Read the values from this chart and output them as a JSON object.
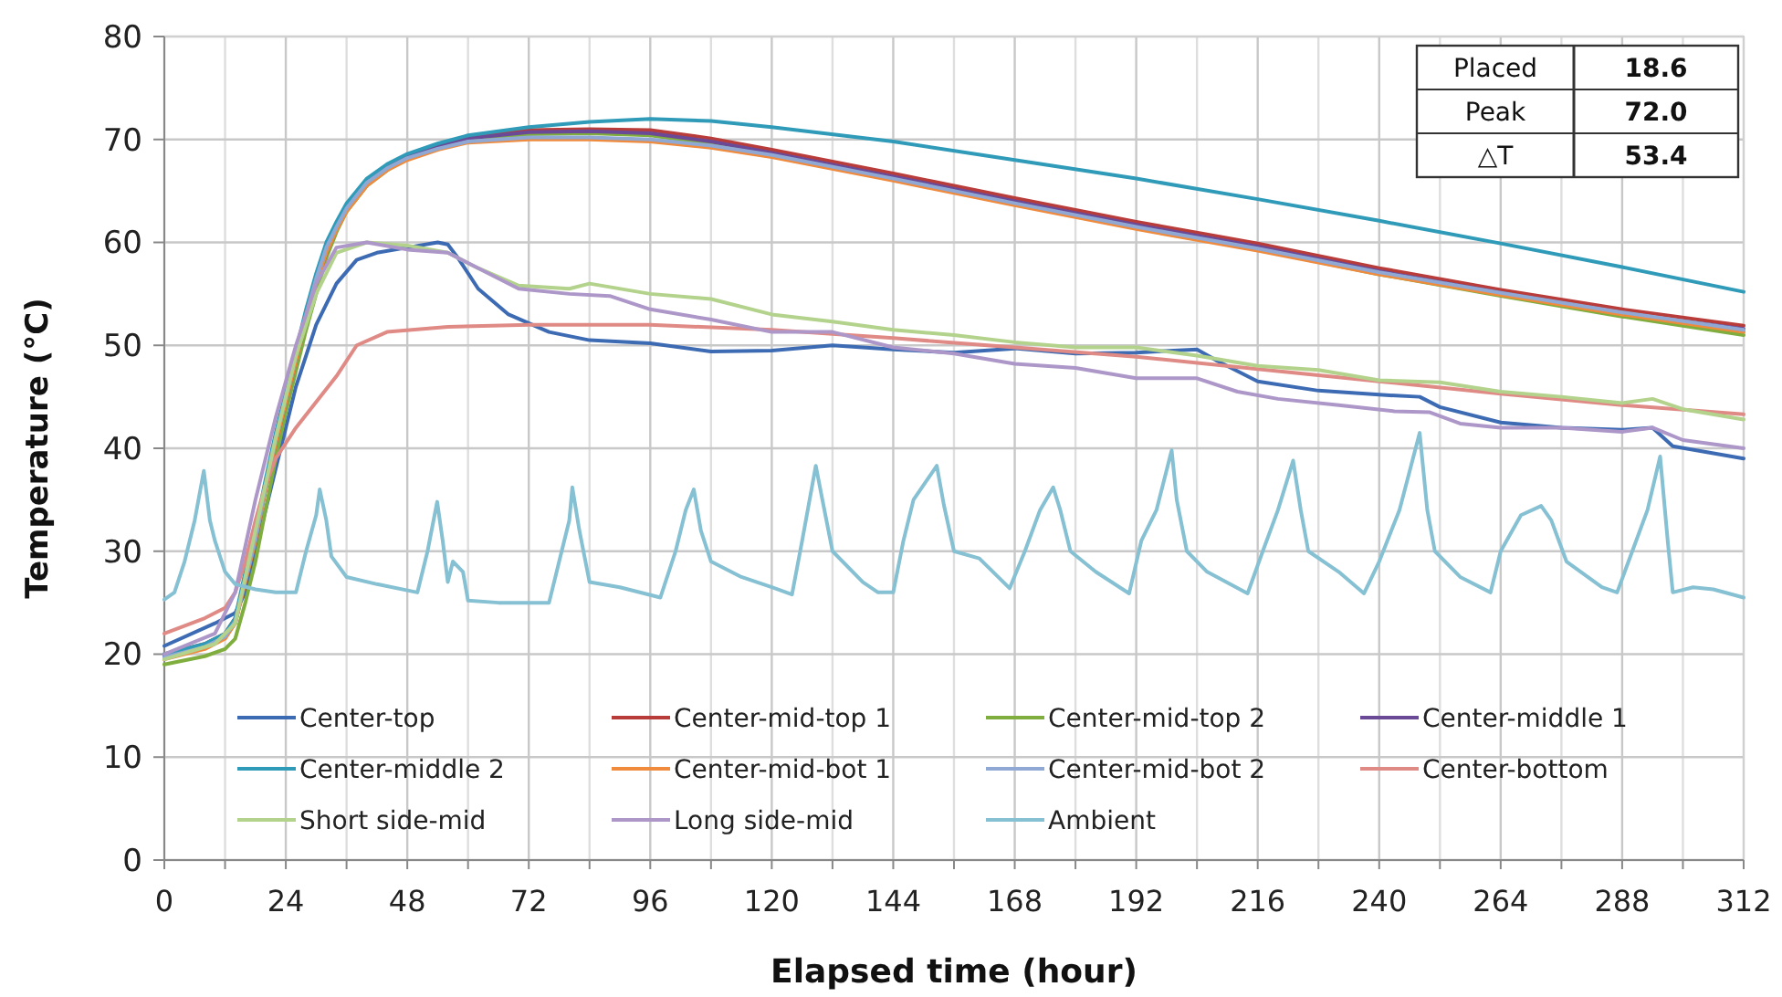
{
  "chart_data": {
    "type": "line",
    "xlabel": "Elapsed time (hour)",
    "ylabel": "Temperature (°C)",
    "xlim": [
      0,
      312
    ],
    "xticks": [
      0,
      {
        "value": 12,
        "label": null
      },
      24,
      {
        "value": 36,
        "label": null
      },
      48,
      {
        "value": 60,
        "label": null
      },
      72,
      {
        "value": 84,
        "label": null
      },
      96,
      {
        "value": 108,
        "label": null
      },
      120,
      {
        "value": 132,
        "label": null
      },
      144,
      {
        "value": 156,
        "label": null
      },
      168,
      {
        "value": 180,
        "label": null
      },
      192,
      {
        "value": 204,
        "label": null
      },
      216,
      {
        "value": 228,
        "label": null
      },
      240,
      {
        "value": 252,
        "label": null
      },
      264,
      {
        "value": 276,
        "label": null
      },
      288,
      {
        "value": 300,
        "label": null
      },
      312
    ],
    "ylim": [
      0,
      80
    ],
    "yticks": [
      0,
      10,
      20,
      30,
      40,
      50,
      60,
      70,
      80
    ],
    "grid": true,
    "legend": "bottom",
    "annotations": [
      "Placed",
      "18.6",
      "Peak",
      "72.0",
      "△T",
      "53.4"
    ],
    "x": [
      0,
      8,
      12,
      14,
      16,
      18,
      20,
      22,
      24,
      26,
      28,
      30,
      32,
      34,
      36,
      40,
      44,
      48,
      54,
      60,
      72,
      84,
      96,
      108,
      120,
      144,
      168,
      192,
      216,
      240,
      264,
      288,
      312
    ],
    "series": [
      {
        "name": "Center-top",
        "color": "#3d6bb3",
        "x": [
          0,
          10,
          14,
          16,
          18,
          20,
          22,
          24,
          26,
          28,
          30,
          34,
          38,
          42,
          48,
          54,
          56,
          58,
          62,
          68,
          76,
          84,
          96,
          108,
          120,
          132,
          144,
          156,
          168,
          180,
          192,
          204,
          208,
          216,
          228,
          240,
          248,
          252,
          264,
          276,
          288,
          294,
          298,
          312
        ],
        "values": [
          20.8,
          23,
          24,
          26,
          30,
          34,
          38,
          42,
          46,
          49,
          52,
          56,
          58.3,
          59,
          59.5,
          60,
          59.8,
          58.5,
          55.5,
          53,
          51.3,
          50.5,
          50.2,
          49.4,
          49.5,
          50,
          49.6,
          49.3,
          49.7,
          49.2,
          49.3,
          49.6,
          48.5,
          46.5,
          45.6,
          45.2,
          45.0,
          44.0,
          42.5,
          42.0,
          41.8,
          42.0,
          40.2,
          39.0
        ]
      },
      {
        "name": "Center-mid-top 1",
        "color": "#b83c3a",
        "values": [
          20,
          21,
          22,
          23.5,
          27.5,
          31.5,
          36.5,
          41,
          45,
          49,
          53,
          56.5,
          59.5,
          61.5,
          63.3,
          65.8,
          67.3,
          68.3,
          69.4,
          70.2,
          70.9,
          71.0,
          70.9,
          70.1,
          69.0,
          66.7,
          64.3,
          62.0,
          59.9,
          57.5,
          55.4,
          53.5,
          51.9
        ]
      },
      {
        "name": "Center-mid-top 2",
        "color": "#7fae3e",
        "values": [
          19,
          19.8,
          20.5,
          21.5,
          25,
          29,
          34,
          39,
          43.5,
          47.5,
          51.5,
          55,
          58.5,
          61,
          63,
          65.5,
          67,
          68.2,
          69.3,
          70,
          70.5,
          70.6,
          70.4,
          69.6,
          68.5,
          66.1,
          63.7,
          61.4,
          59.3,
          56.9,
          54.8,
          52.8,
          51.0
        ]
      },
      {
        "name": "Center-middle 1",
        "color": "#6a4a96",
        "values": [
          19.8,
          20.8,
          21.8,
          23,
          27,
          31,
          36,
          40.5,
          44.5,
          48.5,
          52.5,
          56,
          59,
          61.3,
          63.2,
          65.7,
          67.2,
          68.3,
          69.3,
          70.1,
          70.7,
          70.8,
          70.6,
          69.8,
          68.7,
          66.4,
          64.0,
          61.7,
          59.6,
          57.2,
          55.1,
          53.1,
          51.6
        ]
      },
      {
        "name": "Center-middle 2",
        "color": "#2f9bb8",
        "values": [
          20,
          21,
          22,
          23.5,
          28,
          32,
          37,
          41.5,
          45.5,
          49.5,
          53.5,
          57,
          60,
          62,
          63.8,
          66.2,
          67.6,
          68.6,
          69.6,
          70.4,
          71.2,
          71.7,
          72.0,
          71.8,
          71.2,
          69.8,
          68.0,
          66.2,
          64.2,
          62.1,
          59.9,
          57.6,
          55.2
        ]
      },
      {
        "name": "Center-mid-bot 1",
        "color": "#f08a3c",
        "values": [
          19.5,
          20.5,
          21.5,
          23,
          27,
          31,
          36,
          40.5,
          44.5,
          48.5,
          52.5,
          56,
          59,
          61.2,
          63,
          65.5,
          67,
          68,
          69,
          69.7,
          70.0,
          70.0,
          69.8,
          69.2,
          68.3,
          66.0,
          63.6,
          61.3,
          59.2,
          56.9,
          54.9,
          53.0,
          51.3
        ]
      },
      {
        "name": "Center-mid-bot 2",
        "color": "#8fa9d4",
        "values": [
          19.7,
          20.7,
          21.7,
          23.2,
          27.3,
          31.3,
          36.3,
          41,
          45,
          49,
          53,
          56.5,
          59.5,
          61.5,
          63.3,
          65.8,
          67.2,
          68.2,
          69.1,
          69.8,
          70.2,
          70.2,
          70.0,
          69.4,
          68.5,
          66.2,
          63.8,
          61.5,
          59.4,
          57.1,
          55.1,
          53.2,
          51.5
        ]
      },
      {
        "name": "Center-bottom",
        "color": "#e08a86",
        "x": [
          0,
          8,
          12,
          14,
          16,
          18,
          20,
          22,
          26,
          30,
          34,
          38,
          44,
          56,
          72,
          96,
          120,
          144,
          168,
          192,
          216,
          240,
          264,
          288,
          312
        ],
        "values": [
          22,
          23.5,
          24.5,
          26,
          29,
          33,
          36.5,
          39,
          42,
          44.5,
          47,
          50,
          51.3,
          51.8,
          52,
          52,
          51.5,
          50.7,
          49.8,
          48.9,
          47.7,
          46.5,
          45.3,
          44.2,
          43.3
        ]
      },
      {
        "name": "Short side-mid",
        "color": "#b3d38c",
        "x": [
          0,
          10,
          14,
          18,
          22,
          26,
          30,
          34,
          40,
          48,
          56,
          62,
          70,
          80,
          84,
          96,
          108,
          120,
          132,
          144,
          156,
          168,
          180,
          192,
          204,
          216,
          228,
          240,
          252,
          264,
          276,
          288,
          294,
          300,
          312
        ],
        "values": [
          19.5,
          21,
          23,
          32,
          41,
          49,
          55,
          59,
          60,
          59.7,
          59,
          57.5,
          55.8,
          55.5,
          56,
          55,
          54.5,
          53,
          52.3,
          51.5,
          51,
          50.3,
          49.8,
          49.8,
          49,
          48,
          47.6,
          46.6,
          46.4,
          45.5,
          45,
          44.4,
          44.8,
          43.8,
          42.8
        ]
      },
      {
        "name": "Long side-mid",
        "color": "#ad97c9",
        "x": [
          0,
          10,
          14,
          18,
          22,
          26,
          30,
          34,
          40,
          48,
          56,
          62,
          70,
          80,
          88,
          96,
          108,
          120,
          132,
          144,
          156,
          168,
          180,
          192,
          204,
          212,
          220,
          232,
          243,
          250,
          256,
          264,
          276,
          288,
          294,
          300,
          312
        ],
        "values": [
          20,
          22,
          26,
          35,
          43,
          50,
          56,
          59.5,
          60,
          59.3,
          59,
          57.5,
          55.5,
          55,
          54.8,
          53.5,
          52.5,
          51.3,
          51.3,
          49.8,
          49.2,
          48.2,
          47.8,
          46.8,
          46.8,
          45.5,
          44.8,
          44.2,
          43.6,
          43.5,
          42.4,
          42.0,
          42.0,
          41.6,
          42.0,
          40.8,
          40.0
        ]
      },
      {
        "name": "Ambient",
        "color": "#86c0d3",
        "x": [
          0,
          2,
          4,
          6,
          7.8,
          9,
          10,
          12,
          14,
          18,
          22,
          26,
          28,
          30,
          30.7,
          32,
          33,
          36,
          42,
          50,
          52,
          53.9,
          55,
          56,
          57,
          59,
          60,
          66,
          72,
          76,
          78,
          80,
          80.6,
          82,
          83,
          84,
          90,
          98,
          101,
          103,
          104.6,
          106,
          108,
          114,
          120,
          124,
          126,
          128.7,
          130,
          132,
          138,
          141,
          144,
          146,
          148,
          152.6,
          154,
          156,
          161,
          167,
          170,
          173,
          175.6,
          177,
          179,
          184,
          190.6,
          193,
          196,
          199,
          200,
          202,
          206,
          214,
          217,
          220,
          223,
          224.5,
          226,
          232,
          237,
          240,
          244,
          248,
          249.5,
          251,
          256,
          262,
          264,
          268,
          272,
          274,
          277,
          284,
          287,
          290,
          293,
          295.5,
          297,
          298,
          302,
          306,
          312
        ],
        "values": [
          25.3,
          26,
          29,
          33,
          37.8,
          33,
          31,
          28,
          26.8,
          26.3,
          26,
          26,
          30,
          33.5,
          36,
          33,
          29.5,
          27.5,
          26.8,
          26,
          30,
          34.8,
          31,
          27,
          29,
          28,
          25.2,
          25,
          25,
          25,
          29,
          33,
          36.2,
          32,
          29.5,
          27,
          26.5,
          25.5,
          30,
          34,
          36,
          32,
          29,
          27.5,
          26.5,
          25.8,
          31,
          38.3,
          35,
          30,
          27,
          26,
          26,
          31,
          35,
          38.3,
          34.5,
          30,
          29.3,
          26.4,
          30,
          34,
          36.2,
          34,
          30,
          28,
          25.9,
          31,
          34,
          39.8,
          35,
          30,
          28,
          25.9,
          30,
          34,
          38.8,
          34,
          30,
          28,
          25.9,
          29,
          34,
          41.5,
          34,
          30,
          27.5,
          26,
          30,
          33.5,
          34.4,
          33,
          29,
          26.5,
          26,
          30,
          34,
          39.2,
          31,
          26,
          26.5,
          26.3,
          25.5
        ]
      }
    ]
  }
}
